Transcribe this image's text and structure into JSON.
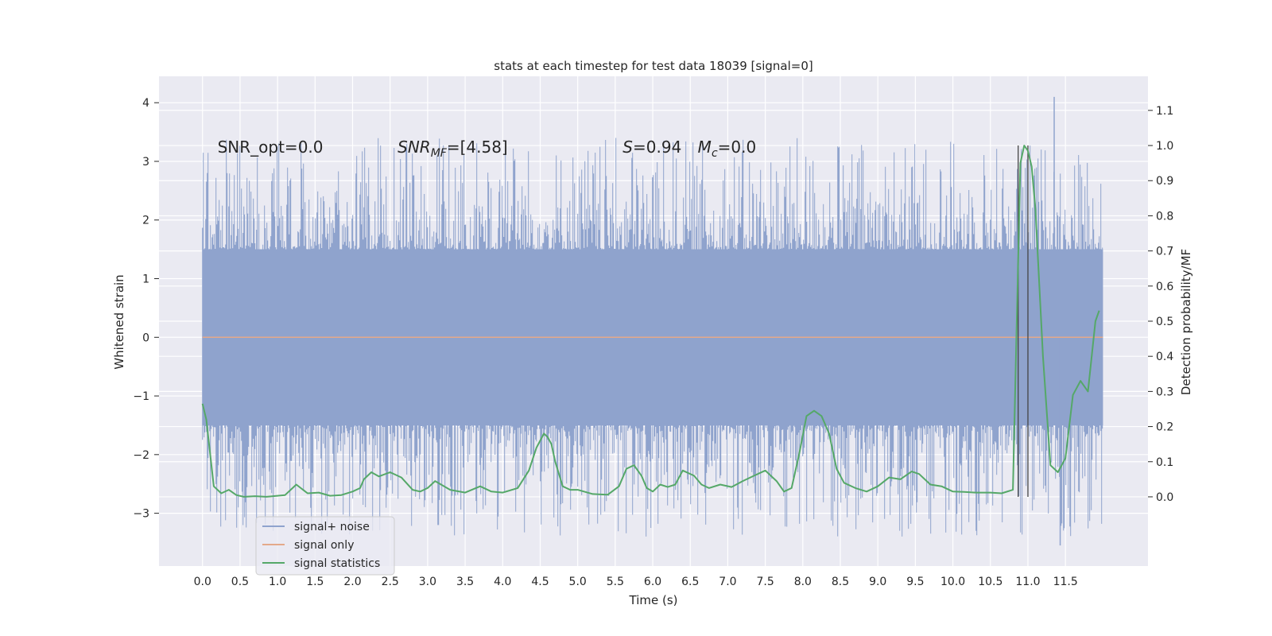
{
  "chart_data": {
    "type": "line",
    "title": "stats at each timestep for test data 18039 [signal=0]",
    "xlabel": "Time (s)",
    "ylabel": "Whitened strain",
    "y2label": "Detection probability/MF",
    "xlim": [
      -0.58,
      12.6
    ],
    "ylim": [
      -3.9,
      4.45
    ],
    "y2lim": [
      -0.197,
      1.197
    ],
    "x_ticks": [
      0.0,
      0.5,
      1.0,
      1.5,
      2.0,
      2.5,
      3.0,
      3.5,
      4.0,
      4.5,
      5.0,
      5.5,
      6.0,
      6.5,
      7.0,
      7.5,
      8.0,
      8.5,
      9.0,
      9.5,
      10.0,
      10.5,
      11.0,
      11.5
    ],
    "x_tick_labels": [
      "0.0",
      "0.5",
      "1.0",
      "1.5",
      "2.0",
      "2.5",
      "3.0",
      "3.5",
      "4.0",
      "4.5",
      "5.0",
      "5.5",
      "6.0",
      "6.5",
      "7.0",
      "7.5",
      "8.0",
      "8.5",
      "9.0",
      "9.5",
      "10.0",
      "10.5",
      "11.0",
      "11.5"
    ],
    "y_ticks": [
      -3,
      -2,
      -1,
      0,
      1,
      2,
      3,
      4
    ],
    "y_tick_labels": [
      "−3",
      "−2",
      "−1",
      "0",
      "1",
      "2",
      "3",
      "4"
    ],
    "y2_ticks": [
      0.0,
      0.1,
      0.2,
      0.3,
      0.4,
      0.5,
      0.6,
      0.7,
      0.8,
      0.9,
      1.0,
      1.1
    ],
    "y2_tick_labels": [
      "0.0",
      "0.1",
      "0.2",
      "0.3",
      "0.4",
      "0.5",
      "0.6",
      "0.7",
      "0.8",
      "0.9",
      "1.0",
      "1.1"
    ],
    "grid": true,
    "legend_position": "bottom-left",
    "annotations": [
      {
        "id": "snr-opt",
        "text": "SNR_opt=0.0",
        "x": 0.2,
        "y": 3.15
      },
      {
        "id": "snr-mf",
        "text": "SNR",
        "sub": "MF",
        "tail": "=[4.58]",
        "x": 2.6,
        "y": 3.15
      },
      {
        "id": "s-val",
        "text": "S",
        "tail": "=0.94",
        "x": 5.6,
        "y": 3.15
      },
      {
        "id": "mc-val",
        "text": "M",
        "sub": "c",
        "tail": "=0.0",
        "x": 6.6,
        "y": 3.15
      }
    ],
    "series": [
      {
        "name": "signal+ noise",
        "axis": "left",
        "color": "#8fa3cd",
        "kind": "noise",
        "x_range": [
          0.0,
          12.0
        ],
        "core_band": [
          -1.5,
          1.5
        ],
        "extreme_range": [
          -3.55,
          4.1
        ]
      },
      {
        "name": "signal only",
        "axis": "left",
        "color": "#e4a98a",
        "x": [
          0.0,
          12.0
        ],
        "y": [
          0.0,
          0.0
        ]
      },
      {
        "name": "signal statistics",
        "axis": "right",
        "color": "#55a868",
        "x": [
          0.0,
          0.05,
          0.15,
          0.25,
          0.35,
          0.45,
          0.55,
          0.7,
          0.85,
          1.0,
          1.1,
          1.25,
          1.4,
          1.55,
          1.7,
          1.85,
          2.0,
          2.1,
          2.15,
          2.25,
          2.35,
          2.5,
          2.65,
          2.8,
          2.9,
          3.0,
          3.1,
          3.3,
          3.5,
          3.7,
          3.85,
          4.0,
          4.2,
          4.35,
          4.45,
          4.55,
          4.6,
          4.65,
          4.7,
          4.8,
          4.9,
          5.0,
          5.2,
          5.4,
          5.55,
          5.65,
          5.75,
          5.85,
          5.92,
          6.0,
          6.1,
          6.2,
          6.3,
          6.4,
          6.55,
          6.65,
          6.75,
          6.9,
          7.05,
          7.2,
          7.35,
          7.5,
          7.65,
          7.75,
          7.85,
          7.95,
          8.05,
          8.15,
          8.25,
          8.35,
          8.45,
          8.55,
          8.7,
          8.85,
          9.0,
          9.15,
          9.3,
          9.45,
          9.55,
          9.7,
          9.85,
          10.0,
          10.15,
          10.3,
          10.5,
          10.65,
          10.8,
          10.9,
          10.95,
          11.0,
          11.05,
          11.1,
          11.2,
          11.3,
          11.4,
          11.5,
          11.6,
          11.7,
          11.8,
          11.9,
          11.95
        ],
        "y": [
          0.265,
          0.22,
          0.03,
          0.01,
          0.02,
          0.005,
          0.0,
          0.002,
          0.0,
          0.003,
          0.005,
          0.035,
          0.01,
          0.012,
          0.003,
          0.005,
          0.015,
          0.025,
          0.05,
          0.07,
          0.058,
          0.07,
          0.055,
          0.02,
          0.015,
          0.025,
          0.045,
          0.02,
          0.012,
          0.03,
          0.015,
          0.012,
          0.025,
          0.075,
          0.14,
          0.18,
          0.17,
          0.15,
          0.1,
          0.03,
          0.02,
          0.02,
          0.008,
          0.006,
          0.03,
          0.08,
          0.09,
          0.06,
          0.025,
          0.015,
          0.035,
          0.028,
          0.035,
          0.075,
          0.06,
          0.035,
          0.025,
          0.035,
          0.028,
          0.045,
          0.06,
          0.075,
          0.045,
          0.015,
          0.025,
          0.12,
          0.23,
          0.245,
          0.23,
          0.18,
          0.08,
          0.04,
          0.025,
          0.015,
          0.03,
          0.055,
          0.05,
          0.072,
          0.065,
          0.035,
          0.03,
          0.015,
          0.014,
          0.012,
          0.012,
          0.01,
          0.02,
          0.95,
          1.0,
          0.985,
          0.94,
          0.82,
          0.4,
          0.09,
          0.07,
          0.11,
          0.29,
          0.33,
          0.3,
          0.5,
          0.53
        ]
      }
    ],
    "vlines": [
      {
        "x": 10.87,
        "y2_range": [
          0.0,
          1.0
        ],
        "color": "#444444"
      },
      {
        "x": 11.0,
        "y2_range": [
          0.0,
          1.0
        ],
        "color": "#444444"
      }
    ]
  }
}
